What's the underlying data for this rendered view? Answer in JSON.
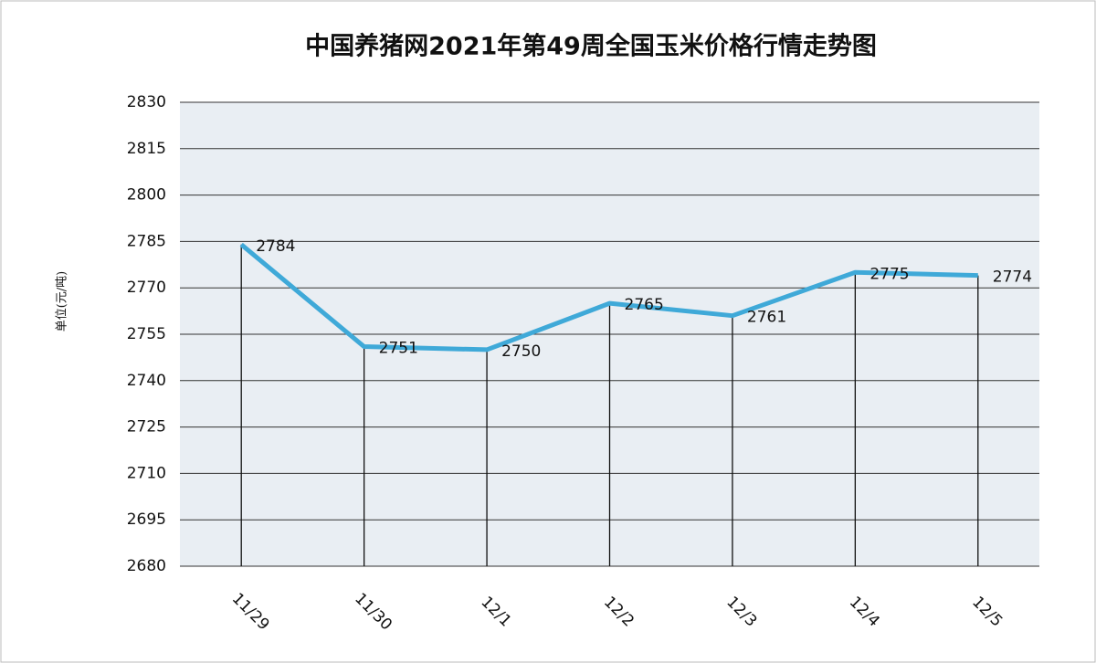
{
  "chart_data": {
    "type": "line",
    "title": "中国养猪网2021年第49周全国玉米价格行情走势图",
    "y_label": "单位(元/吨)",
    "categories": [
      "11/29",
      "11/30",
      "12/1",
      "12/2",
      "12/3",
      "12/4",
      "12/5"
    ],
    "values": [
      2784,
      2751,
      2750,
      2765,
      2761,
      2775,
      2774
    ],
    "color": "#3fa9d8",
    "ylim": [
      2680,
      2830
    ],
    "yticks": [
      2680,
      2695,
      2710,
      2725,
      2740,
      2755,
      2770,
      2785,
      2800,
      2815,
      2830
    ],
    "grid": true
  }
}
